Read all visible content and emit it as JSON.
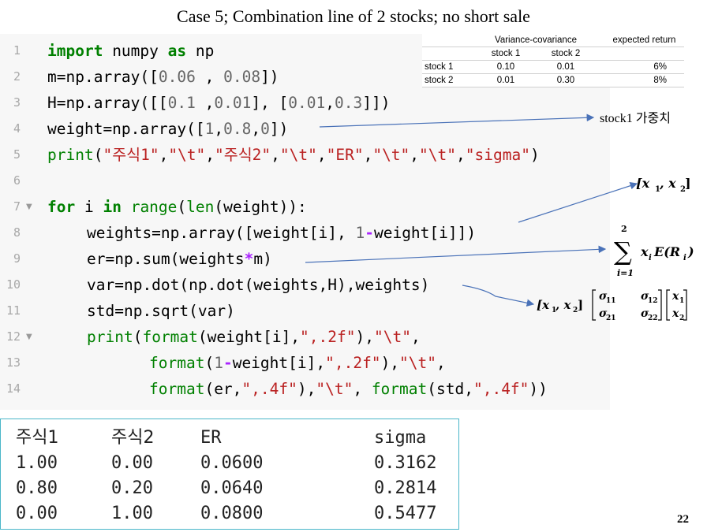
{
  "title": "Case 5; Combination line of 2 stocks; no short sale",
  "code": {
    "line_numbers": [
      "1",
      "2",
      "3",
      "4",
      "5",
      "6",
      "7",
      "8",
      "9",
      "10",
      "11",
      "12",
      "13",
      "14"
    ],
    "l1": {
      "kw": "import",
      "a": " numpy ",
      "kw2": "as",
      "b": " np"
    },
    "l2": {
      "a": "m=np.array([",
      "n1": "0.06",
      "b": " , ",
      "n2": "0.08",
      "c": "])"
    },
    "l3": {
      "a": "H=np.array([[",
      "n1": "0.1",
      "b": " ,",
      "n2": "0.01",
      "c": "], [",
      "n3": "0.01",
      "d": ",",
      "n4": "0.3",
      "e": "]])"
    },
    "l4": {
      "a": "weight=np.array([",
      "n1": "1",
      "b": ",",
      "n2": "0.8",
      "c": ",",
      "n3": "0",
      "d": "])"
    },
    "l5": {
      "fn": "print",
      "a": "(",
      "s1": "\"주식1\"",
      "b": ",",
      "s2": "\"\\t\"",
      "c": ",",
      "s3": "\"주식2\"",
      "d": ",",
      "s4": "\"\\t\"",
      "e": ",",
      "s5": "\"ER\"",
      "f": ",",
      "s6": "\"\\t\"",
      "g": ",",
      "s7": "\"\\t\"",
      "h": ",",
      "s8": "\"sigma\"",
      "i": ")"
    },
    "l7": {
      "kw": "for",
      "a": " i ",
      "kw2": "in",
      "b": " ",
      "fn": "range",
      "c": "(",
      "fn2": "len",
      "d": "(weight)):"
    },
    "l8": {
      "a": "weights=np.array([weight[i], ",
      "n1": "1",
      "op": "-",
      "b": "weight[i]])"
    },
    "l9": {
      "a": "er=np.sum(weights",
      "op": "*",
      "b": "m)"
    },
    "l10": {
      "a": "var=np.dot(np.dot(weights,H),weights)"
    },
    "l11": {
      "a": "std=np.sqrt(var)"
    },
    "l12": {
      "fn": "print",
      "a": "(",
      "fn2": "format",
      "b": "(weight[i],",
      "s1": "\",.2f\"",
      "c": "),",
      "s2": "\"\\t\"",
      "d": ","
    },
    "l13": {
      "fn": "format",
      "a": "(",
      "n1": "1",
      "op": "-",
      "b": "weight[i],",
      "s1": "\",.2f\"",
      "c": "),",
      "s2": "\"\\t\"",
      "d": ","
    },
    "l14": {
      "fn": "format",
      "a": "(er,",
      "s1": "\",.4f\"",
      "b": "),",
      "s2": "\"\\t\"",
      "c": ", ",
      "fn2": "format",
      "d": "(std,",
      "s3": "\",.4f\"",
      "e": "))"
    }
  },
  "vc_table": {
    "header_group": "Variance-covariance",
    "header_er": "expected return",
    "col1": "stock 1",
    "col2": "stock 2",
    "rows": [
      {
        "label": "stock 1",
        "v1": "0.10",
        "v2": "0.01",
        "er": "6%"
      },
      {
        "label": "stock 2",
        "v1": "0.01",
        "v2": "0.30",
        "er": "8%"
      }
    ]
  },
  "annotations": {
    "weight_note": "stock1 가중치"
  },
  "output": {
    "headers": [
      "주식1",
      "주식2",
      "ER",
      "sigma"
    ],
    "rows": [
      [
        "1.00",
        "0.00",
        "0.0600",
        "0.3162"
      ],
      [
        "0.80",
        "0.20",
        "0.0640",
        "0.2814"
      ],
      [
        "0.00",
        "1.00",
        "0.0800",
        "0.5477"
      ]
    ]
  },
  "page_number": "22",
  "colors": {
    "code_bg": "#f7f7f7",
    "keyword": "#008000",
    "string": "#ba2121",
    "number": "#666666",
    "arrow": "#4a72b8",
    "output_border": "#4ab6c9"
  }
}
